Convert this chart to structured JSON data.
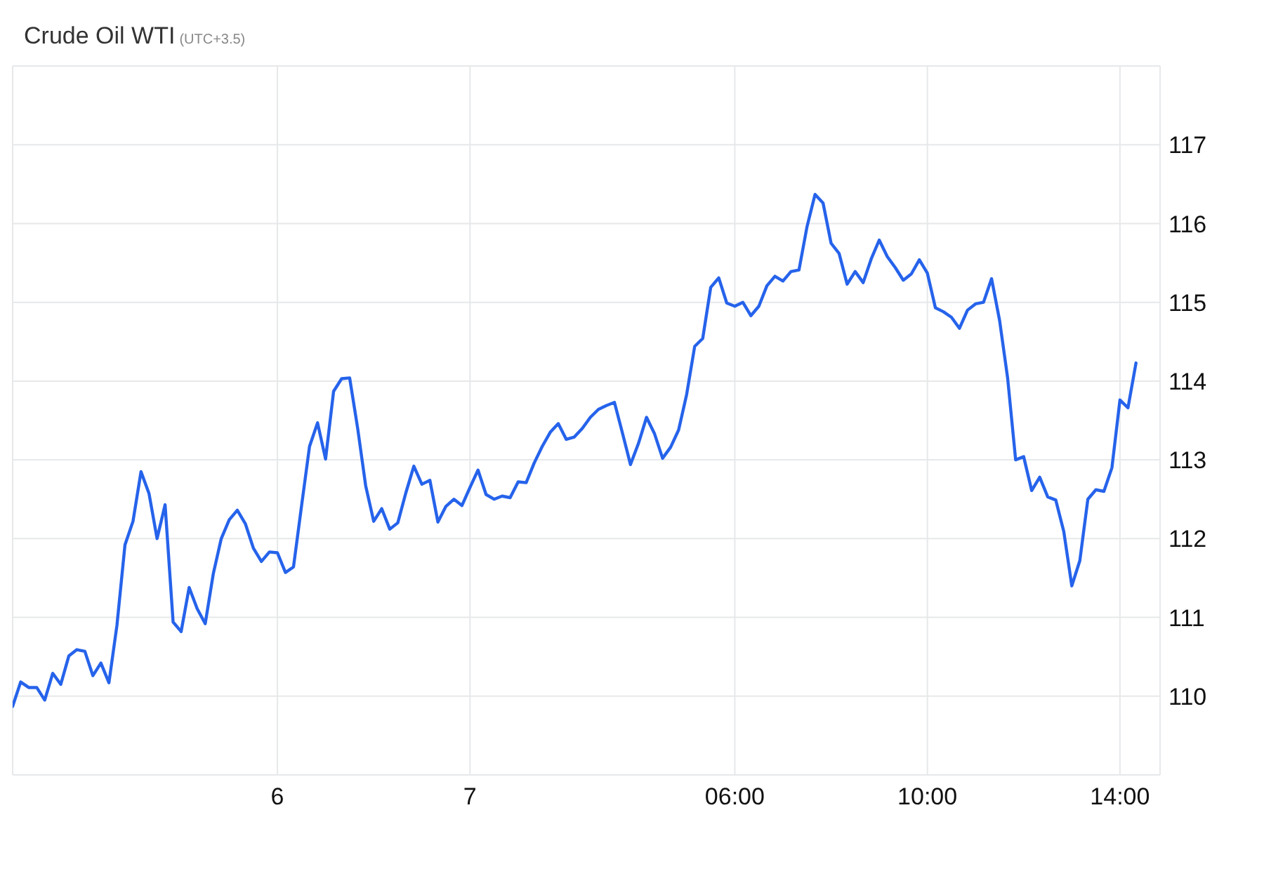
{
  "chart_data": {
    "type": "line",
    "title": "Crude Oil WTI",
    "subtitle": "(UTC+3.5)",
    "categories": [
      null,
      null,
      null,
      null,
      null,
      null,
      null,
      null,
      null,
      null,
      null,
      null,
      null,
      null,
      null,
      null,
      null,
      null,
      null,
      null,
      null,
      null,
      null,
      null,
      null,
      null,
      null,
      null,
      null,
      null,
      null,
      null,
      null,
      "6",
      null,
      null,
      null,
      null,
      null,
      null,
      null,
      null,
      null,
      null,
      null,
      null,
      null,
      null,
      null,
      null,
      null,
      null,
      null,
      null,
      null,
      null,
      null,
      "7",
      null,
      null,
      null,
      null,
      null,
      null,
      null,
      null,
      null,
      null,
      null,
      null,
      null,
      null,
      null,
      null,
      null,
      null,
      null,
      null,
      null,
      null,
      null,
      null,
      null,
      null,
      null,
      null,
      null,
      null,
      null,
      null,
      "06:00",
      null,
      null,
      null,
      null,
      null,
      null,
      null,
      null,
      null,
      null,
      null,
      null,
      null,
      null,
      null,
      null,
      null,
      null,
      null,
      null,
      null,
      null,
      null,
      "10:00",
      null,
      null,
      null,
      null,
      null,
      null,
      null,
      null,
      null,
      null,
      null,
      null,
      null,
      null,
      null,
      null,
      null,
      null,
      null,
      null,
      null,
      null,
      null,
      "14:00",
      null,
      null
    ],
    "values": [
      109.87,
      110.18,
      110.11,
      110.11,
      109.95,
      110.29,
      110.15,
      110.51,
      110.59,
      110.57,
      110.26,
      110.42,
      110.17,
      110.9,
      111.92,
      112.22,
      112.85,
      112.57,
      112.0,
      112.43,
      110.94,
      110.82,
      111.38,
      111.11,
      110.92,
      111.55,
      112.0,
      112.24,
      112.36,
      112.19,
      111.88,
      111.71,
      111.83,
      111.82,
      111.57,
      111.64,
      112.41,
      113.17,
      113.47,
      113.01,
      113.87,
      114.03,
      114.04,
      113.4,
      112.67,
      112.22,
      112.38,
      112.12,
      112.2,
      112.58,
      112.92,
      112.69,
      112.74,
      112.21,
      112.41,
      112.5,
      112.42,
      112.65,
      112.87,
      112.56,
      112.5,
      112.54,
      112.52,
      112.72,
      112.71,
      112.96,
      113.17,
      113.35,
      113.46,
      113.26,
      113.29,
      113.4,
      113.54,
      113.64,
      113.69,
      113.73,
      113.34,
      112.94,
      113.21,
      113.54,
      113.33,
      113.02,
      113.16,
      113.38,
      113.83,
      114.44,
      114.54,
      115.19,
      115.31,
      114.99,
      114.95,
      115.0,
      114.83,
      114.95,
      115.21,
      115.33,
      115.27,
      115.39,
      115.41,
      115.96,
      116.37,
      116.26,
      115.75,
      115.62,
      115.23,
      115.39,
      115.25,
      115.55,
      115.79,
      115.58,
      115.44,
      115.28,
      115.36,
      115.54,
      115.37,
      114.93,
      114.88,
      114.81,
      114.67,
      114.9,
      114.98,
      115.0,
      115.3,
      114.77,
      114.04,
      113.0,
      113.04,
      112.61,
      112.78,
      112.53,
      112.49,
      112.09,
      111.4,
      111.72,
      112.5,
      112.62,
      112.6,
      112.9,
      113.76,
      113.66,
      114.23
    ],
    "color": "#2663eb",
    "ylim": [
      109,
      118
    ],
    "yticks": [
      {
        "value": 109,
        "label": null
      },
      110,
      111,
      112,
      113,
      114,
      115,
      116,
      117,
      {
        "value": 118,
        "label": null
      }
    ],
    "grid": true
  }
}
